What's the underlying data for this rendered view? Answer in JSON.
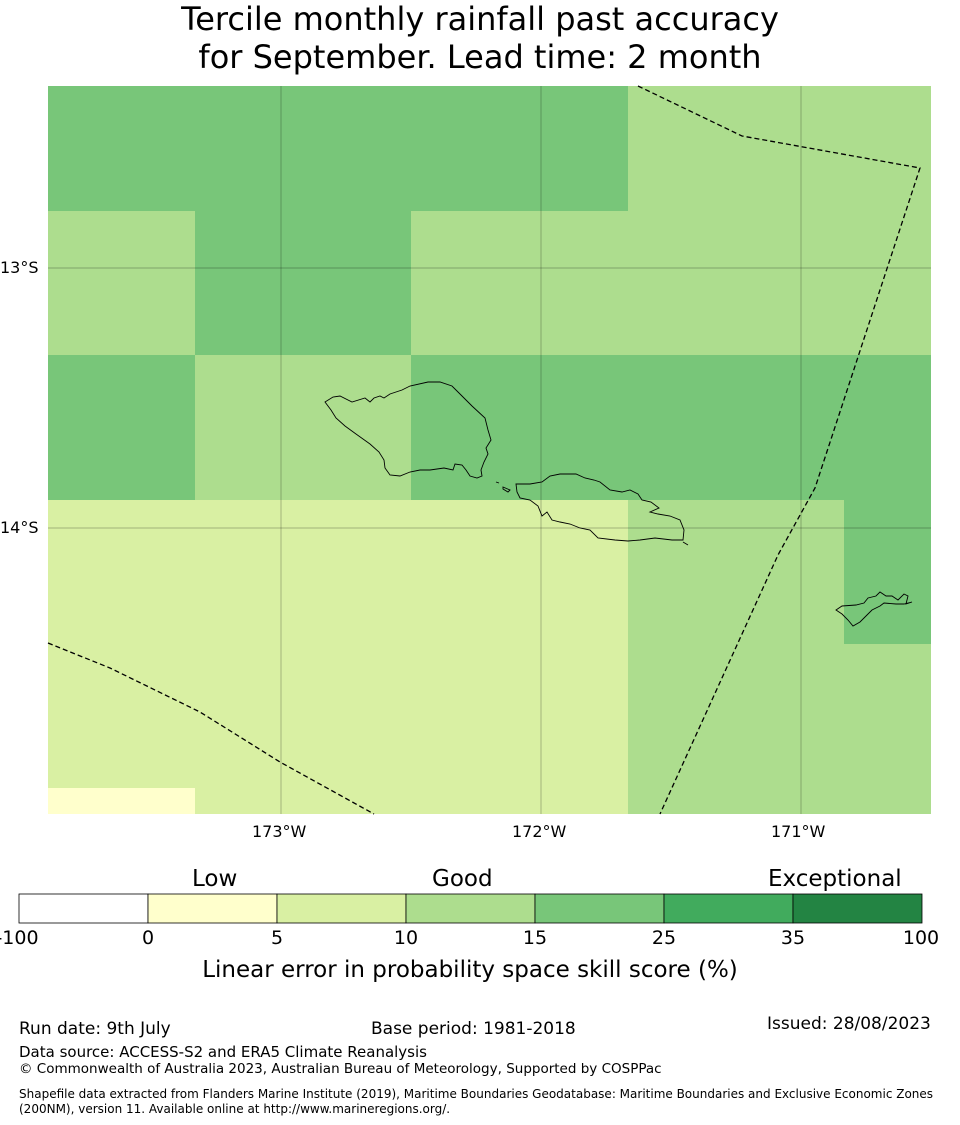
{
  "title": {
    "line1": "Tercile monthly rainfall past accuracy",
    "line2": "for September. Lead time: 2 month"
  },
  "map": {
    "lat_labels": [
      "13°S",
      "14°S"
    ],
    "lon_labels": [
      "173°W",
      "172°W",
      "171°W"
    ],
    "colors": {
      "0_5": "#ffffcc",
      "5_10": "#d9f0a3",
      "10_15": "#addd8e",
      "15_25": "#78c679",
      "25_35": "#41ab5d",
      "35_100": "#238443"
    }
  },
  "colorbar": {
    "categories": [
      "Low",
      "Good",
      "Exceptional"
    ],
    "ticks": [
      "-100",
      "0",
      "5",
      "10",
      "15",
      "25",
      "35",
      "100"
    ],
    "colors": [
      "#ffffff",
      "#ffffcc",
      "#d9f0a3",
      "#addd8e",
      "#78c679",
      "#41ab5d",
      "#238443"
    ],
    "label": "Linear error in probability space skill score (%)"
  },
  "footer": {
    "run_date": "Run date: 9th July",
    "base_period": "Base period: 1981-2018",
    "issued": "Issued: 28/08/2023",
    "data_source": "Data source: ACCESS-S2 and ERA5 Climate Reanalysis",
    "copyright": "© Commonwealth of Australia 2023, Australian Bureau of Meteorology, Supported by COSPPac",
    "shapefile_1": "Shapefile data extracted from Flanders Marine Institute (2019), Maritime Boundaries Geodatabase: Maritime Boundaries and Exclusive Economic Zones",
    "shapefile_2": "(200NM), version 11. Available online at http://www.marineregions.org/."
  }
}
